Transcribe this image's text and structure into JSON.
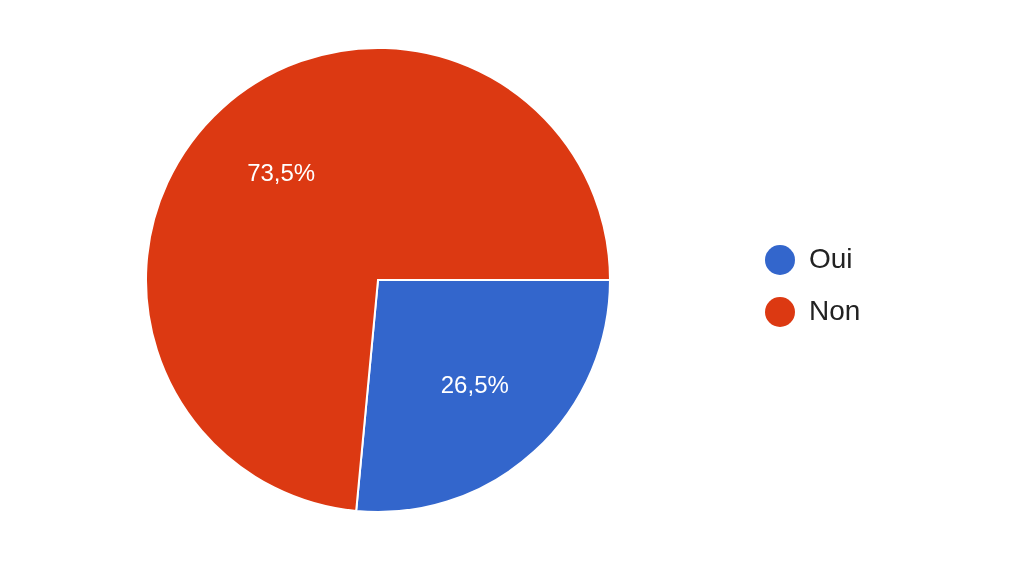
{
  "chart_data": {
    "type": "pie",
    "categories": [
      "Oui",
      "Non"
    ],
    "values": [
      26.5,
      73.5
    ],
    "colors": [
      "#3366cc",
      "#dc3912"
    ],
    "value_labels": [
      "26,5%",
      "73,5%"
    ],
    "legend": "right"
  }
}
